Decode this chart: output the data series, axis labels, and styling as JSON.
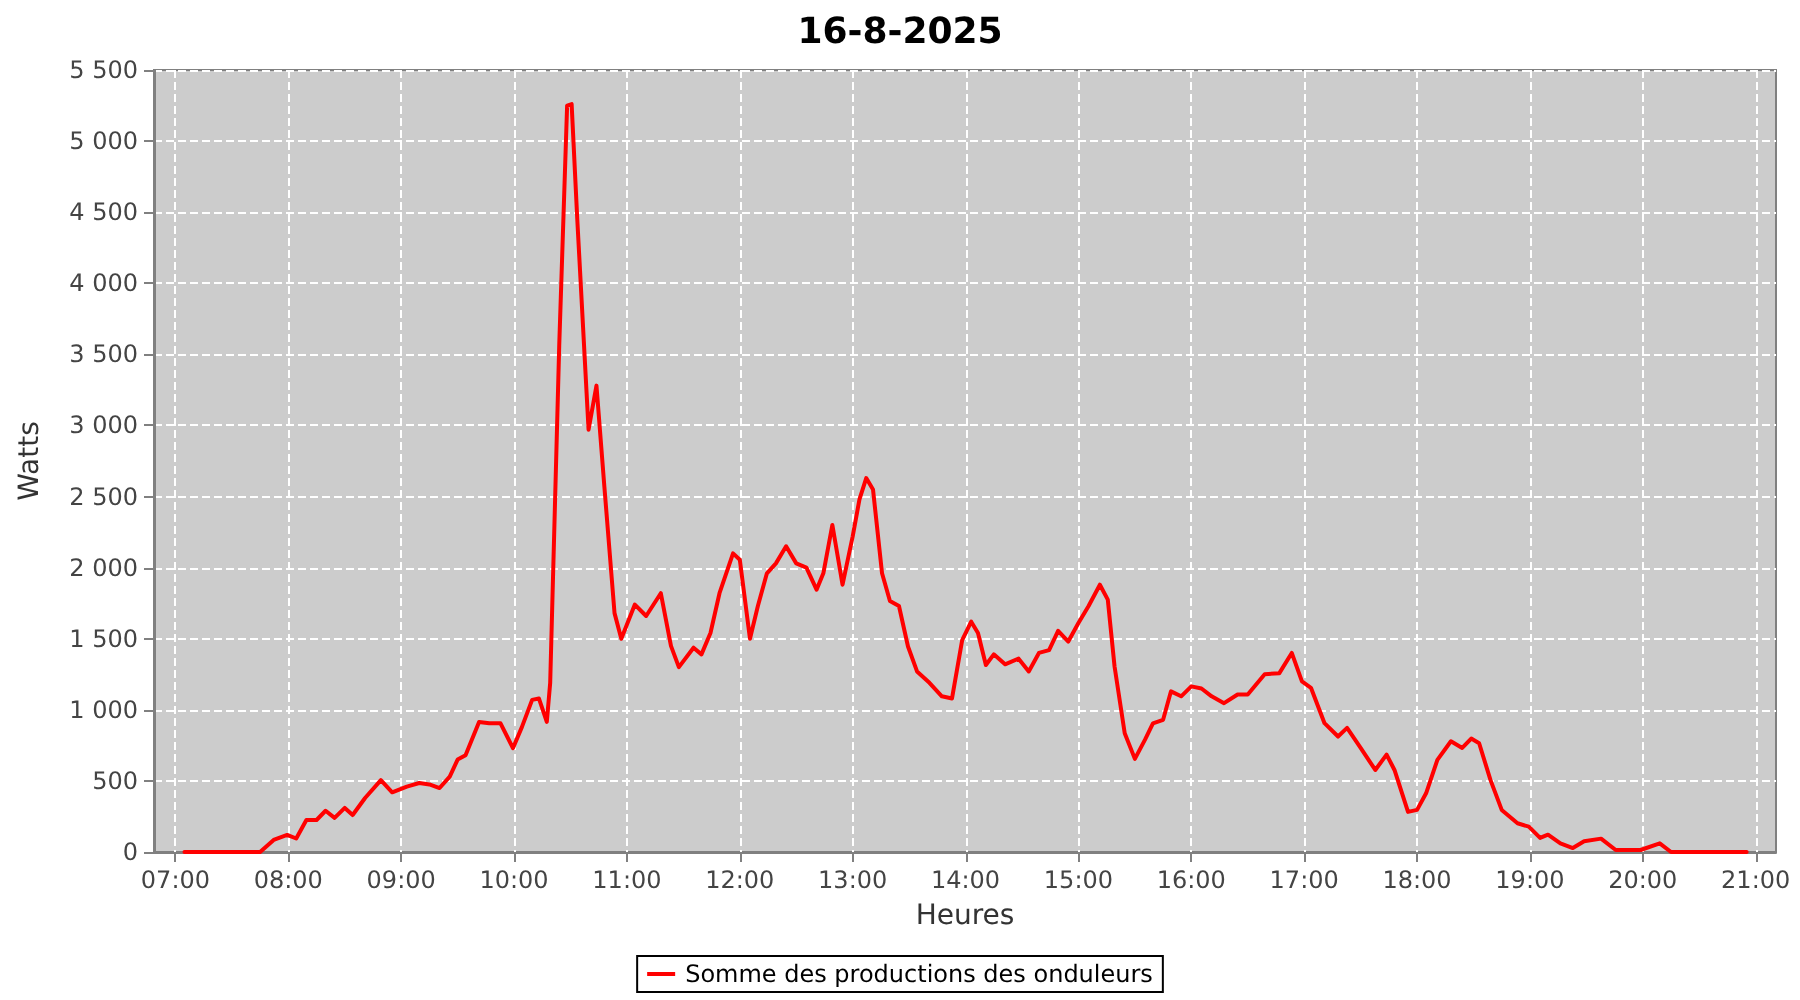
{
  "chart_data": {
    "type": "line",
    "title": "16-8-2025",
    "xlabel": "Heures",
    "ylabel": "Watts",
    "xlim": [
      6.81,
      21.18
    ],
    "xticks": [
      {
        "value": 7,
        "label": "07:00"
      },
      {
        "value": 8,
        "label": "08:00"
      },
      {
        "value": 9,
        "label": "09:00"
      },
      {
        "value": 10,
        "label": "10:00"
      },
      {
        "value": 11,
        "label": "11:00"
      },
      {
        "value": 12,
        "label": "12:00"
      },
      {
        "value": 13,
        "label": "13:00"
      },
      {
        "value": 14,
        "label": "14:00"
      },
      {
        "value": 15,
        "label": "15:00"
      },
      {
        "value": 16,
        "label": "16:00"
      },
      {
        "value": 17,
        "label": "17:00"
      },
      {
        "value": 18,
        "label": "18:00"
      },
      {
        "value": 19,
        "label": "19:00"
      },
      {
        "value": 20,
        "label": "20:00"
      },
      {
        "value": 21,
        "label": "21:00"
      }
    ],
    "ylim": [
      0,
      5500
    ],
    "yticks": [
      0,
      500,
      {
        "value": 1000,
        "label": "1 000"
      },
      {
        "value": 1500,
        "label": "1 500"
      },
      {
        "value": 2000,
        "label": "2 000"
      },
      {
        "value": 2500,
        "label": "2 500"
      },
      {
        "value": 3000,
        "label": "3 000"
      },
      {
        "value": 3500,
        "label": "3 500"
      },
      {
        "value": 4000,
        "label": "4 000"
      },
      {
        "value": 4500,
        "label": "4 500"
      },
      {
        "value": 5000,
        "label": "5 000"
      },
      {
        "value": 5500,
        "label": "5 500"
      }
    ],
    "grid": true,
    "legend": "bottom",
    "marker": "none",
    "line_style": "solid",
    "x": [
      7.08,
      7.75,
      7.87,
      7.99,
      8.07,
      8.16,
      8.25,
      8.33,
      8.41,
      8.5,
      8.57,
      8.68,
      8.82,
      8.92,
      9.05,
      9.16,
      9.25,
      9.34,
      9.43,
      9.5,
      9.57,
      9.69,
      9.78,
      9.88,
      9.99,
      10.07,
      10.16,
      10.22,
      10.29,
      10.32,
      10.4,
      10.47,
      10.51,
      10.56,
      10.66,
      10.73,
      10.8,
      10.89,
      10.95,
      11.07,
      11.17,
      11.3,
      11.39,
      11.46,
      11.59,
      11.66,
      11.74,
      11.82,
      11.94,
      12.0,
      12.09,
      12.16,
      12.24,
      12.32,
      12.41,
      12.5,
      12.59,
      12.68,
      12.74,
      12.82,
      12.91,
      13.0,
      13.06,
      13.12,
      13.18,
      13.26,
      13.33,
      13.41,
      13.49,
      13.57,
      13.68,
      13.79,
      13.88,
      13.97,
      14.05,
      14.11,
      14.18,
      14.25,
      14.35,
      14.47,
      14.56,
      14.65,
      14.74,
      14.82,
      14.91,
      15.0,
      15.09,
      15.19,
      15.26,
      15.32,
      15.41,
      15.5,
      15.59,
      15.66,
      15.75,
      15.82,
      15.91,
      16.0,
      16.09,
      16.18,
      16.29,
      16.41,
      16.5,
      16.65,
      16.78,
      16.89,
      16.98,
      17.06,
      17.18,
      17.3,
      17.38,
      17.5,
      17.63,
      17.73,
      17.8,
      17.92,
      18.0,
      18.08,
      18.18,
      18.3,
      18.4,
      18.48,
      18.55,
      18.65,
      18.75,
      18.89,
      18.99,
      19.09,
      19.16,
      19.27,
      19.38,
      19.48,
      19.63,
      19.76,
      19.98,
      20.15,
      20.25,
      20.92
    ],
    "series": [
      {
        "name": "Somme des productions des onduleurs",
        "color": "#ff0000",
        "values": [
          0,
          0,
          85,
          120,
          95,
          225,
          225,
          290,
          240,
          310,
          260,
          380,
          505,
          420,
          460,
          485,
          475,
          450,
          530,
          650,
          680,
          915,
          905,
          905,
          730,
          880,
          1070,
          1080,
          915,
          1190,
          3560,
          5250,
          5260,
          4450,
          2970,
          3280,
          2570,
          1680,
          1500,
          1740,
          1660,
          1820,
          1450,
          1300,
          1437,
          1390,
          1540,
          1820,
          2100,
          2055,
          1500,
          1730,
          1960,
          2030,
          2150,
          2030,
          2000,
          1845,
          1960,
          2300,
          1880,
          2220,
          2480,
          2630,
          2550,
          1960,
          1765,
          1730,
          1445,
          1270,
          1190,
          1095,
          1080,
          1490,
          1620,
          1540,
          1315,
          1390,
          1320,
          1360,
          1270,
          1400,
          1420,
          1555,
          1480,
          1610,
          1730,
          1880,
          1775,
          1305,
          835,
          655,
          790,
          905,
          930,
          1130,
          1095,
          1165,
          1150,
          1095,
          1047,
          1108,
          1108,
          1250,
          1258,
          1400,
          1200,
          1155,
          906,
          812,
          873,
          732,
          577,
          685,
          577,
          282,
          296,
          413,
          648,
          779,
          732,
          798,
          765,
          507,
          296,
          202,
          178,
          99,
          122,
          61,
          28,
          75,
          94,
          14,
          14,
          61,
          0,
          0
        ]
      }
    ]
  }
}
